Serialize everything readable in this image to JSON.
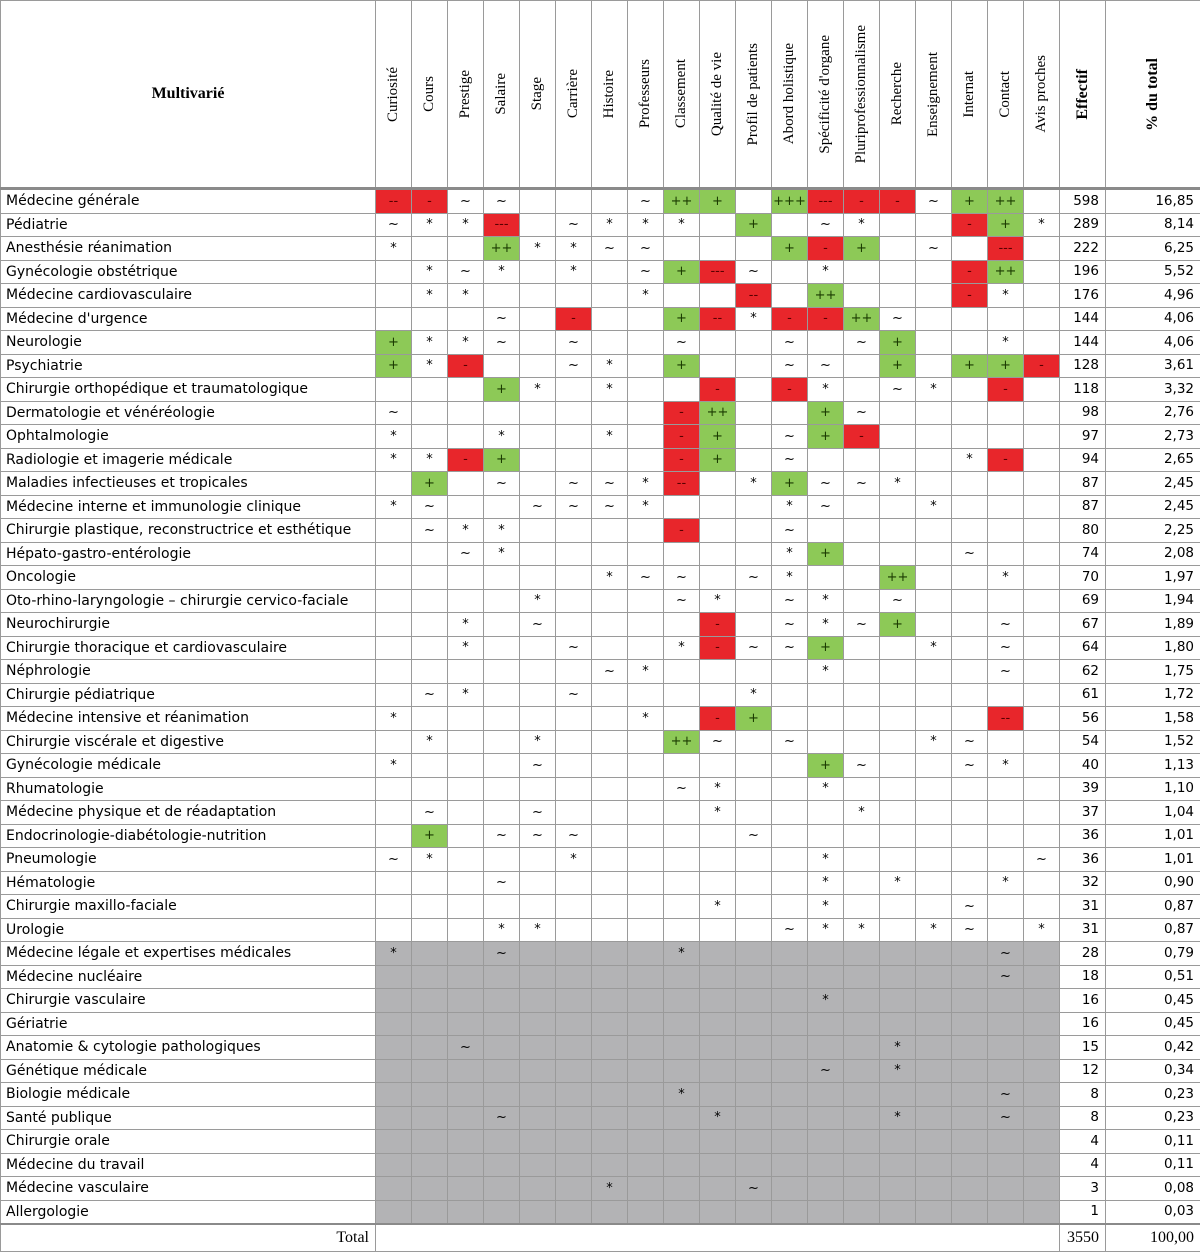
{
  "table": {
    "corner_label": "Multivarié",
    "criteria": [
      "Curiosité",
      "Cours",
      "Prestige",
      "Salaire",
      "Stage",
      "Carrière",
      "Histoire",
      "Professeurs",
      "Classement",
      "Qualité de vie",
      "Profil de patients",
      "Abord holistique",
      "Spécificité d'organe",
      "Pluriprofessionnalisme",
      "Recherche",
      "Enseignement",
      "Internat",
      "Contact",
      "Avis proches"
    ],
    "effectif_header": "Effectif",
    "percent_header": "% du total",
    "rows": [
      {
        "name": "Médecine générale",
        "effectif": "598",
        "percent": "16,85",
        "grey": false,
        "cells": [
          "--",
          "-",
          "~",
          "~",
          "",
          "",
          "",
          "~",
          "++",
          "+",
          "",
          "+++",
          "---",
          "-",
          "-",
          "~",
          "+",
          "++",
          ""
        ]
      },
      {
        "name": "Pédiatrie",
        "effectif": "289",
        "percent": "8,14",
        "grey": false,
        "cells": [
          "~",
          "*",
          "*",
          "---",
          "",
          "~",
          "*",
          "*",
          "*",
          "",
          "+",
          "",
          "~",
          "*",
          "",
          "",
          "-",
          "+",
          "*"
        ]
      },
      {
        "name": "Anesthésie réanimation",
        "effectif": "222",
        "percent": "6,25",
        "grey": false,
        "cells": [
          "*",
          "",
          "",
          "++",
          "*",
          "*",
          "~",
          "~",
          "",
          "",
          "",
          "+",
          "-",
          "+",
          "",
          "~",
          "",
          "---",
          ""
        ]
      },
      {
        "name": "Gynécologie obstétrique",
        "effectif": "196",
        "percent": "5,52",
        "grey": false,
        "cells": [
          "",
          "*",
          "~",
          "*",
          "",
          "*",
          "",
          "~",
          "+",
          "---",
          "~",
          "",
          "*",
          "",
          "",
          "",
          "-",
          "++",
          ""
        ]
      },
      {
        "name": "Médecine cardiovasculaire",
        "effectif": "176",
        "percent": "4,96",
        "grey": false,
        "cells": [
          "",
          "*",
          "*",
          "",
          "",
          "",
          "",
          "*",
          "",
          "",
          "--",
          "",
          "++",
          "",
          "",
          "",
          "-",
          "*",
          ""
        ]
      },
      {
        "name": "Médecine d'urgence",
        "effectif": "144",
        "percent": "4,06",
        "grey": false,
        "cells": [
          "",
          "",
          "",
          "~",
          "",
          "-",
          "",
          "",
          "+",
          "--",
          "*",
          "-",
          "-",
          "++",
          "~",
          "",
          "",
          "",
          ""
        ]
      },
      {
        "name": "Neurologie",
        "effectif": "144",
        "percent": "4,06",
        "grey": false,
        "cells": [
          "+",
          "*",
          "*",
          "~",
          "",
          "~",
          "",
          "",
          "~",
          "",
          "",
          "~",
          "",
          "~",
          "+",
          "",
          "",
          "*",
          ""
        ]
      },
      {
        "name": "Psychiatrie",
        "effectif": "128",
        "percent": "3,61",
        "grey": false,
        "cells": [
          "+",
          "*",
          "-",
          "",
          "",
          "~",
          "*",
          "",
          "+",
          "",
          "",
          "~",
          "~",
          "",
          "+",
          "",
          "+",
          "+",
          "-"
        ]
      },
      {
        "name": "Chirurgie orthopédique et traumatologique",
        "effectif": "118",
        "percent": "3,32",
        "grey": false,
        "cells": [
          "",
          "",
          "",
          "+",
          "*",
          "",
          "*",
          "",
          "",
          "-",
          "",
          "-",
          "*",
          "",
          "~",
          "*",
          "",
          "-",
          ""
        ]
      },
      {
        "name": "Dermatologie et vénéréologie",
        "effectif": "98",
        "percent": "2,76",
        "grey": false,
        "cells": [
          "~",
          "",
          "",
          "",
          "",
          "",
          "",
          "",
          "-",
          "++",
          "",
          "",
          "+",
          "~",
          "",
          "",
          "",
          "",
          ""
        ]
      },
      {
        "name": "Ophtalmologie",
        "effectif": "97",
        "percent": "2,73",
        "grey": false,
        "cells": [
          "*",
          "",
          "",
          "*",
          "",
          "",
          "*",
          "",
          "-",
          "+",
          "",
          "~",
          "+",
          "-",
          "",
          "",
          "",
          "",
          ""
        ]
      },
      {
        "name": "Radiologie et imagerie médicale",
        "effectif": "94",
        "percent": "2,65",
        "grey": false,
        "cells": [
          "*",
          "*",
          "-",
          "+",
          "",
          "",
          "",
          "",
          "-",
          "+",
          "",
          "~",
          "",
          "",
          "",
          "",
          "*",
          "-",
          ""
        ]
      },
      {
        "name": "Maladies infectieuses et tropicales",
        "effectif": "87",
        "percent": "2,45",
        "grey": false,
        "cells": [
          "",
          "+",
          "",
          "~",
          "",
          "~",
          "~",
          "*",
          "--",
          "",
          "*",
          "+",
          "~",
          "~",
          "*",
          "",
          "",
          "",
          ""
        ]
      },
      {
        "name": "Médecine interne et immunologie clinique",
        "effectif": "87",
        "percent": "2,45",
        "grey": false,
        "cells": [
          "*",
          "~",
          "",
          "",
          "~",
          "~",
          "~",
          "*",
          "",
          "",
          "",
          "*",
          "~",
          "",
          "",
          "*",
          "",
          "",
          ""
        ]
      },
      {
        "name": "Chirurgie plastique, reconstructrice et esthétique",
        "effectif": "80",
        "percent": "2,25",
        "grey": false,
        "cells": [
          "",
          "~",
          "*",
          "*",
          "",
          "",
          "",
          "",
          "-",
          "",
          "",
          "~",
          "",
          "",
          "",
          "",
          "",
          "",
          ""
        ]
      },
      {
        "name": "Hépato-gastro-entérologie",
        "effectif": "74",
        "percent": "2,08",
        "grey": false,
        "cells": [
          "",
          "",
          "~",
          "*",
          "",
          "",
          "",
          "",
          "",
          "",
          "",
          "*",
          "+",
          "",
          "",
          "",
          "~",
          "",
          ""
        ]
      },
      {
        "name": "Oncologie",
        "effectif": "70",
        "percent": "1,97",
        "grey": false,
        "cells": [
          "",
          "",
          "",
          "",
          "",
          "",
          "*",
          "~",
          "~",
          "",
          "~",
          "*",
          "",
          "",
          "++",
          "",
          "",
          "*",
          ""
        ]
      },
      {
        "name": "Oto-rhino-laryngologie – chirurgie cervico-faciale",
        "effectif": "69",
        "percent": "1,94",
        "grey": false,
        "cells": [
          "",
          "",
          "",
          "",
          "*",
          "",
          "",
          "",
          "~",
          "*",
          "",
          "~",
          "*",
          "",
          "~",
          "",
          "",
          "",
          ""
        ]
      },
      {
        "name": "Neurochirurgie",
        "effectif": "67",
        "percent": "1,89",
        "grey": false,
        "cells": [
          "",
          "",
          "*",
          "",
          "~",
          "",
          "",
          "",
          "",
          "-",
          "",
          "~",
          "*",
          "~",
          "+",
          "",
          "",
          "~",
          ""
        ]
      },
      {
        "name": "Chirurgie thoracique et cardiovasculaire",
        "effectif": "64",
        "percent": "1,80",
        "grey": false,
        "cells": [
          "",
          "",
          "*",
          "",
          "",
          "~",
          "",
          "",
          "*",
          "-",
          "~",
          "~",
          "+",
          "",
          "",
          "*",
          "",
          "~",
          ""
        ]
      },
      {
        "name": "Néphrologie",
        "effectif": "62",
        "percent": "1,75",
        "grey": false,
        "cells": [
          "",
          "",
          "",
          "",
          "",
          "",
          "~",
          "*",
          "",
          "",
          "",
          "",
          "*",
          "",
          "",
          "",
          "",
          "~",
          ""
        ]
      },
      {
        "name": "Chirurgie pédiatrique",
        "effectif": "61",
        "percent": "1,72",
        "grey": false,
        "cells": [
          "",
          "~",
          "*",
          "",
          "",
          "~",
          "",
          "",
          "",
          "",
          "*",
          "",
          "",
          "",
          "",
          "",
          "",
          "",
          ""
        ]
      },
      {
        "name": "Médecine intensive et réanimation",
        "effectif": "56",
        "percent": "1,58",
        "grey": false,
        "cells": [
          "*",
          "",
          "",
          "",
          "",
          "",
          "",
          "*",
          "",
          "-",
          "+",
          "",
          "",
          "",
          "",
          "",
          "",
          "--",
          ""
        ]
      },
      {
        "name": "Chirurgie viscérale et digestive",
        "effectif": "54",
        "percent": "1,52",
        "grey": false,
        "cells": [
          "",
          "*",
          "",
          "",
          "*",
          "",
          "",
          "",
          "++",
          "~",
          "",
          "~",
          "",
          "",
          "",
          "*",
          "~",
          "",
          ""
        ]
      },
      {
        "name": "Gynécologie médicale",
        "effectif": "40",
        "percent": "1,13",
        "grey": false,
        "cells": [
          "*",
          "",
          "",
          "",
          "~",
          "",
          "",
          "",
          "",
          "",
          "",
          "",
          "+",
          "~",
          "",
          "",
          "~",
          "*",
          ""
        ]
      },
      {
        "name": "Rhumatologie",
        "effectif": "39",
        "percent": "1,10",
        "grey": false,
        "cells": [
          "",
          "",
          "",
          "",
          "",
          "",
          "",
          "",
          "~",
          "*",
          "",
          "",
          "*",
          "",
          "",
          "",
          "",
          "",
          ""
        ]
      },
      {
        "name": "Médecine physique et de réadaptation",
        "effectif": "37",
        "percent": "1,04",
        "grey": false,
        "cells": [
          "",
          "~",
          "",
          "",
          "~",
          "",
          "",
          "",
          "",
          "*",
          "",
          "",
          "",
          "*",
          "",
          "",
          "",
          "",
          ""
        ]
      },
      {
        "name": "Endocrinologie-diabétologie-nutrition",
        "effectif": "36",
        "percent": "1,01",
        "grey": false,
        "cells": [
          "",
          "+",
          "",
          "~",
          "~",
          "~",
          "",
          "",
          "",
          "",
          "~",
          "",
          "",
          "",
          "",
          "",
          "",
          "",
          ""
        ]
      },
      {
        "name": "Pneumologie",
        "effectif": "36",
        "percent": "1,01",
        "grey": false,
        "cells": [
          "~",
          "*",
          "",
          "",
          "",
          "*",
          "",
          "",
          "",
          "",
          "",
          "",
          "*",
          "",
          "",
          "",
          "",
          "",
          "~"
        ]
      },
      {
        "name": "Hématologie",
        "effectif": "32",
        "percent": "0,90",
        "grey": false,
        "cells": [
          "",
          "",
          "",
          "~",
          "",
          "",
          "",
          "",
          "",
          "",
          "",
          "",
          "*",
          "",
          "*",
          "",
          "",
          "*",
          ""
        ]
      },
      {
        "name": "Chirurgie maxillo-faciale",
        "effectif": "31",
        "percent": "0,87",
        "grey": false,
        "cells": [
          "",
          "",
          "",
          "",
          "",
          "",
          "",
          "",
          "",
          "*",
          "",
          "",
          "*",
          "",
          "",
          "",
          "~",
          "",
          ""
        ]
      },
      {
        "name": "Urologie",
        "effectif": "31",
        "percent": "0,87",
        "grey": false,
        "cells": [
          "",
          "",
          "",
          "*",
          "*",
          "",
          "",
          "",
          "",
          "",
          "",
          "~",
          "*",
          "*",
          "",
          "*",
          "~",
          "",
          "*"
        ]
      },
      {
        "name": "Médecine légale et expertises médicales",
        "effectif": "28",
        "percent": "0,79",
        "grey": true,
        "cells": [
          "*",
          "",
          "",
          "~",
          "",
          "",
          "",
          "",
          "*",
          "",
          "",
          "",
          "",
          "",
          "",
          "",
          "",
          "~",
          ""
        ]
      },
      {
        "name": "Médecine nucléaire",
        "effectif": "18",
        "percent": "0,51",
        "grey": true,
        "cells": [
          "",
          "",
          "",
          "",
          "",
          "",
          "",
          "",
          "",
          "",
          "",
          "",
          "",
          "",
          "",
          "",
          "",
          "~",
          ""
        ]
      },
      {
        "name": "Chirurgie vasculaire",
        "effectif": "16",
        "percent": "0,45",
        "grey": true,
        "cells": [
          "",
          "",
          "",
          "",
          "",
          "",
          "",
          "",
          "",
          "",
          "",
          "",
          "*",
          "",
          "",
          "",
          "",
          "",
          ""
        ]
      },
      {
        "name": "Gériatrie",
        "effectif": "16",
        "percent": "0,45",
        "grey": true,
        "cells": [
          "",
          "",
          "",
          "",
          "",
          "",
          "",
          "",
          "",
          "",
          "",
          "",
          "",
          "",
          "",
          "",
          "",
          "",
          ""
        ]
      },
      {
        "name": "Anatomie & cytologie pathologiques",
        "effectif": "15",
        "percent": "0,42",
        "grey": true,
        "cells": [
          "",
          "",
          "~",
          "",
          "",
          "",
          "",
          "",
          "",
          "",
          "",
          "",
          "",
          "",
          "*",
          "",
          "",
          "",
          ""
        ]
      },
      {
        "name": "Génétique médicale",
        "effectif": "12",
        "percent": "0,34",
        "grey": true,
        "cells": [
          "",
          "",
          "",
          "",
          "",
          "",
          "",
          "",
          "",
          "",
          "",
          "",
          "~",
          "",
          "*",
          "",
          "",
          "",
          ""
        ]
      },
      {
        "name": "Biologie médicale",
        "effectif": "8",
        "percent": "0,23",
        "grey": true,
        "cells": [
          "",
          "",
          "",
          "",
          "",
          "",
          "",
          "",
          "*",
          "",
          "",
          "",
          "",
          "",
          "",
          "",
          "",
          "~",
          ""
        ]
      },
      {
        "name": "Santé publique",
        "effectif": "8",
        "percent": "0,23",
        "grey": true,
        "cells": [
          "",
          "",
          "",
          "~",
          "",
          "",
          "",
          "",
          "",
          "*",
          "",
          "",
          "",
          "",
          "*",
          "",
          "",
          "~",
          ""
        ]
      },
      {
        "name": "Chirurgie orale",
        "effectif": "4",
        "percent": "0,11",
        "grey": true,
        "cells": [
          "",
          "",
          "",
          "",
          "",
          "",
          "",
          "",
          "",
          "",
          "",
          "",
          "",
          "",
          "",
          "",
          "",
          "",
          ""
        ]
      },
      {
        "name": "Médecine du travail",
        "effectif": "4",
        "percent": "0,11",
        "grey": true,
        "cells": [
          "",
          "",
          "",
          "",
          "",
          "",
          "",
          "",
          "",
          "",
          "",
          "",
          "",
          "",
          "",
          "",
          "",
          "",
          ""
        ]
      },
      {
        "name": "Médecine vasculaire",
        "effectif": "3",
        "percent": "0,08",
        "grey": true,
        "cells": [
          "",
          "",
          "",
          "",
          "",
          "",
          "*",
          "",
          "",
          "",
          "~",
          "",
          "",
          "",
          "",
          "",
          "",
          "",
          ""
        ]
      },
      {
        "name": "Allergologie",
        "effectif": "1",
        "percent": "0,03",
        "grey": true,
        "cells": [
          "",
          "",
          "",
          "",
          "",
          "",
          "",
          "",
          "",
          "",
          "",
          "",
          "",
          "",
          "",
          "",
          "",
          "",
          ""
        ]
      }
    ],
    "total": {
      "label": "Total",
      "effectif": "3550",
      "percent": "100,00"
    },
    "colors": {
      "negative": "#e8262b",
      "positive": "#8dc957",
      "excluded": "#b3b3b5"
    }
  }
}
